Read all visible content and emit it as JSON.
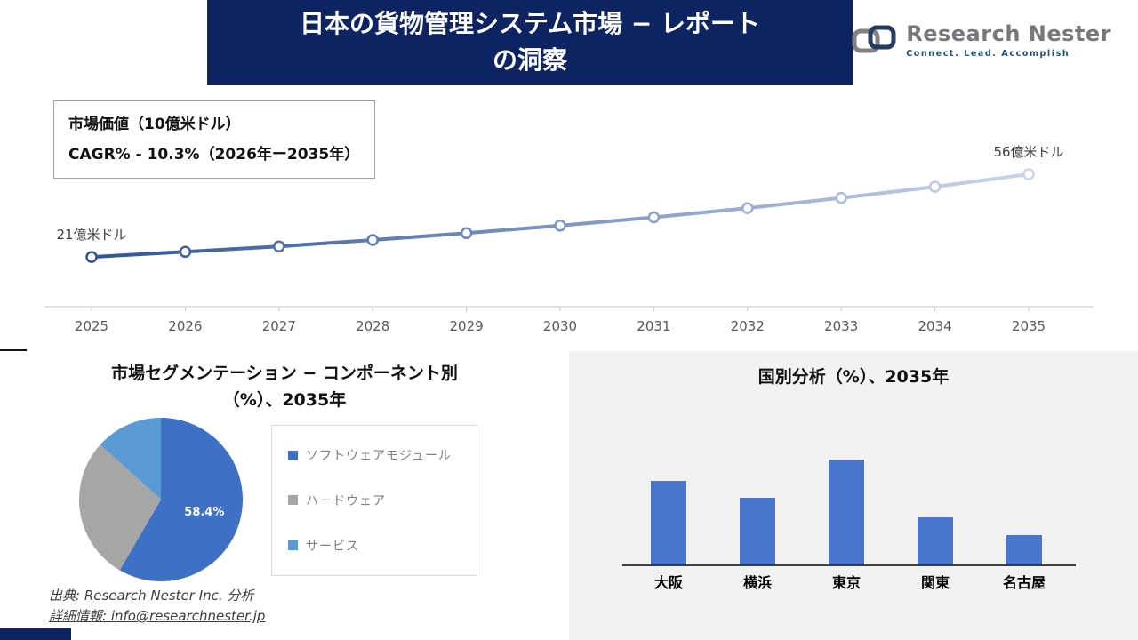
{
  "header": {
    "title_line1": "日本の貨物管理システム市場 − レポート",
    "title_line2": "の洞察"
  },
  "logo": {
    "name": "Research Nester",
    "tagline": "Connect. Lead. Accomplish"
  },
  "info_box": {
    "line1": "市場価値（10億米ドル）",
    "line2": "CAGR% - 10.3%（2026年ー2035年）"
  },
  "chart_data": [
    {
      "type": "line",
      "title": "",
      "x": [
        "2025",
        "2026",
        "2027",
        "2028",
        "2029",
        "2030",
        "2031",
        "2032",
        "2033",
        "2034",
        "2035"
      ],
      "values": [
        21,
        23.2,
        25.5,
        28.2,
        31.1,
        34.3,
        37.8,
        41.7,
        46.0,
        50.7,
        56
      ],
      "start_label": "21億米ドル",
      "end_label": "56億米ドル",
      "ylim": [
        0,
        60
      ],
      "grid": false,
      "line_gradient": [
        "#2f5597",
        "#c9d5ec"
      ]
    },
    {
      "type": "pie",
      "title_line1": "市場セグメンテーション − コンポーネント別",
      "title_line2": "（%）、2035年",
      "labels": [
        "ソフトウェアモジュール",
        "ハードウェア",
        "サービス"
      ],
      "values": [
        58.4,
        28.3,
        13.3
      ],
      "colors": [
        "#3e71c6",
        "#a6a6a6",
        "#5b9bd5"
      ],
      "data_label": "58.4%",
      "legend_position": "right"
    },
    {
      "type": "bar",
      "title": "国別分析（%）、2035年",
      "categories": [
        "大阪",
        "横浜",
        "東京",
        "関東",
        "名古屋"
      ],
      "values": [
        24,
        19,
        30,
        13.5,
        8.5
      ],
      "color": "#4a76cb",
      "ylim": [
        0,
        33
      ],
      "grid": false
    }
  ],
  "footer": {
    "source": "出典: Research Nester Inc. 分析",
    "contact": "詳細情報: info@researchnester.jp"
  }
}
